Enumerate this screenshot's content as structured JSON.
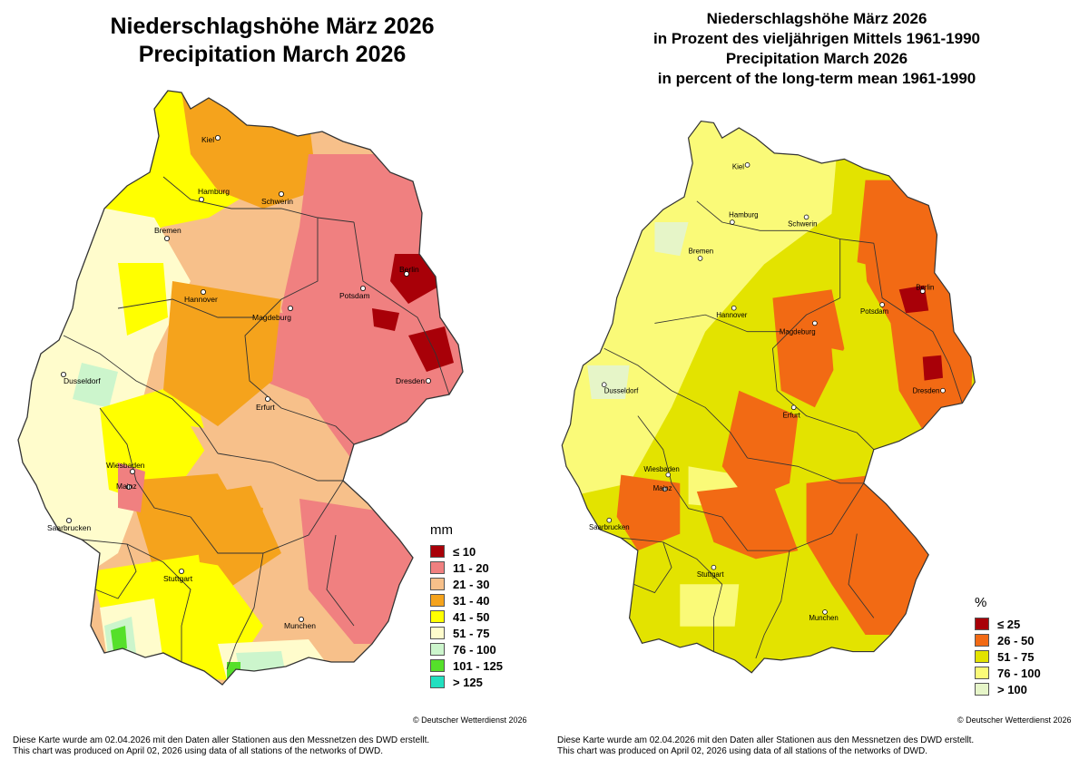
{
  "left_panel": {
    "title_line1": "Niederschlagshöhe März 2026",
    "title_line2": "Precipitation March 2026",
    "legend_unit": "mm",
    "legend": [
      {
        "label": "≤  10",
        "color": "#a80008"
      },
      {
        "label": "11 - 20",
        "color": "#f08080"
      },
      {
        "label": "21 - 30",
        "color": "#f7c08a"
      },
      {
        "label": "31 - 40",
        "color": "#f5a31c"
      },
      {
        "label": "41 - 50",
        "color": "#ffff00"
      },
      {
        "label": "51 - 75",
        "color": "#fffccc"
      },
      {
        "label": "76 - 100",
        "color": "#ccf5cc"
      },
      {
        "label": "101 - 125",
        "color": "#55e02a"
      },
      {
        "label": "> 125",
        "color": "#22e0c0"
      }
    ],
    "copyright": "© Deutscher Wetterdienst 2026",
    "footer_line1": "Diese Karte wurde am 02.04.2026 mit den Daten aller Stationen aus den Messnetzen des DWD erstellt.",
    "footer_line2": "This chart was produced on April 02, 2026 using data of all stations of the networks of DWD."
  },
  "right_panel": {
    "title_line1": "Niederschlagshöhe März 2026",
    "title_line2": "in Prozent des vieljährigen Mittels 1961-1990",
    "title_line3": "Precipitation March 2026",
    "title_line4": "in percent of the long-term mean 1961-1990",
    "legend_unit": "%",
    "legend": [
      {
        "label": "≤  25",
        "color": "#a80008"
      },
      {
        "label": "26 - 50",
        "color": "#f26a14"
      },
      {
        "label": "51 - 75",
        "color": "#e3e300"
      },
      {
        "label": "76 - 100",
        "color": "#fafa78"
      },
      {
        "label": "> 100",
        "color": "#e6f5c8"
      }
    ],
    "copyright": "© Deutscher Wetterdienst 2026",
    "footer_line1": "Diese Karte wurde am 02.04.2026 mit den Daten aller Stationen aus den Messnetzen des DWD erstellt.",
    "footer_line2": "This chart was produced on April 02, 2026 using data of all stations of the networks of DWD."
  },
  "cities": {
    "kiel": "Kiel",
    "hamburg": "Hamburg",
    "schwerin": "Schwerin",
    "bremen": "Bremen",
    "berlin": "Berlin",
    "hannover": "Hannover",
    "potsdam": "Potsdam",
    "magdeburg": "Magdeburg",
    "dusseldorf": "Dusseldorf",
    "dresden": "Dresden",
    "erfurt": "Erfurt",
    "wiesbaden": "Wiesbaden",
    "mainz": "Mainz",
    "saarbrucken": "Saarbrucken",
    "stuttgart": "Stuttgart",
    "munchen": "Munchen"
  }
}
